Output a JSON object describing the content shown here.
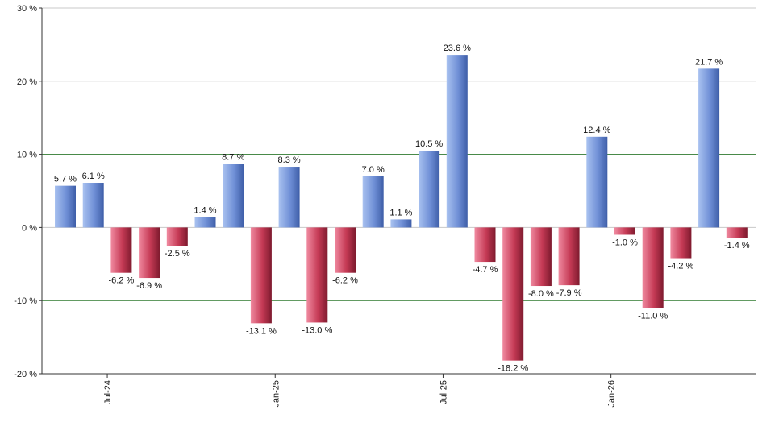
{
  "chart_data": {
    "type": "bar",
    "title": "",
    "xlabel": "",
    "ylabel": "",
    "ylim": [
      -20,
      30
    ],
    "y_ticks": [
      30,
      20,
      10,
      0,
      -10,
      -20
    ],
    "y_tick_suffix": " %",
    "x_tick_labels": [
      {
        "label": "Jul-24",
        "bar_index": 1.5
      },
      {
        "label": "Jan-25",
        "bar_index": 7.5
      },
      {
        "label": "Jul-25",
        "bar_index": 13.5
      },
      {
        "label": "Jan-26",
        "bar_index": 19.5
      }
    ],
    "values": [
      5.7,
      6.1,
      -6.2,
      -6.9,
      -2.5,
      1.4,
      8.7,
      -13.1,
      8.3,
      -13.0,
      -6.2,
      7.0,
      1.1,
      10.5,
      23.6,
      -4.7,
      -18.2,
      -8.0,
      -7.9,
      12.4,
      -1.0,
      -11.0,
      -4.2,
      21.7,
      -1.4
    ],
    "value_labels": [
      "5.7 %",
      "6.1 %",
      "-6.2 %",
      "-6.9 %",
      "-2.5 %",
      "1.4 %",
      "8.7 %",
      "-13.1 %",
      "8.3 %",
      "-13.0 %",
      "-6.2 %",
      "7.0 %",
      "1.1 %",
      "10.5 %",
      "23.6 %",
      "-4.7 %",
      "-18.2 %",
      "-8.0 %",
      "-7.9 %",
      "12.4 %",
      "-1.0 %",
      "-11.0 %",
      "-4.2 %",
      "21.7 %",
      "-1.4 %"
    ],
    "highlight_lines": [
      10,
      -10
    ],
    "grid": true,
    "legend": "none",
    "colors": {
      "positive": "#6f8fd6",
      "negative": "#b8334c",
      "grid": "#c8c8c8",
      "highlight": "#2f7a2f",
      "axis": "#333333"
    }
  }
}
